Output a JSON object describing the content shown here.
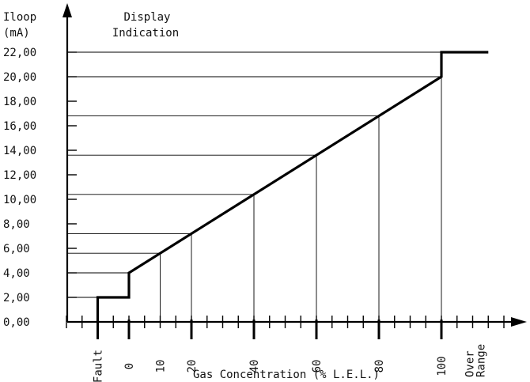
{
  "chart_data": {
    "type": "line",
    "ylabel_lines": [
      "Iloop",
      "(mA)"
    ],
    "annotation_lines": [
      "Display",
      "Indication"
    ],
    "xlabel": "Gas Concentration (% L.E.L.)",
    "y_ticks": [
      "0,00",
      "2,00",
      "4,00",
      "6,00",
      "8,00",
      "10,00",
      "12,00",
      "14,00",
      "16,00",
      "18,00",
      "20,00",
      "22,00"
    ],
    "x_tick_labels": [
      {
        "text": "Fault",
        "at": -10
      },
      {
        "text": "0",
        "at": 0
      },
      {
        "text": "10",
        "at": 10
      },
      {
        "text": "20",
        "at": 20
      },
      {
        "text": "40",
        "at": 40
      },
      {
        "text": "60",
        "at": 60
      },
      {
        "text": "80",
        "at": 80
      },
      {
        "text": "100",
        "at": 100
      },
      {
        "text": "Over Range",
        "at": 111
      }
    ],
    "series": [
      {
        "points": [
          [
            -10,
            0
          ],
          [
            -10,
            2
          ],
          [
            0,
            2
          ],
          [
            0,
            4
          ],
          [
            100,
            20
          ],
          [
            100,
            22
          ],
          [
            115,
            22
          ]
        ]
      }
    ],
    "guides": [
      {
        "x": 10,
        "y": 5.6
      },
      {
        "x": 20,
        "y": 7.2
      },
      {
        "x": 40,
        "y": 10.4
      },
      {
        "x": 60,
        "y": 13.6
      },
      {
        "x": 80,
        "y": 16.8
      },
      {
        "x": 100,
        "y": 20
      }
    ],
    "xlim": [
      -20,
      125
    ],
    "ylim": [
      0,
      23
    ]
  }
}
